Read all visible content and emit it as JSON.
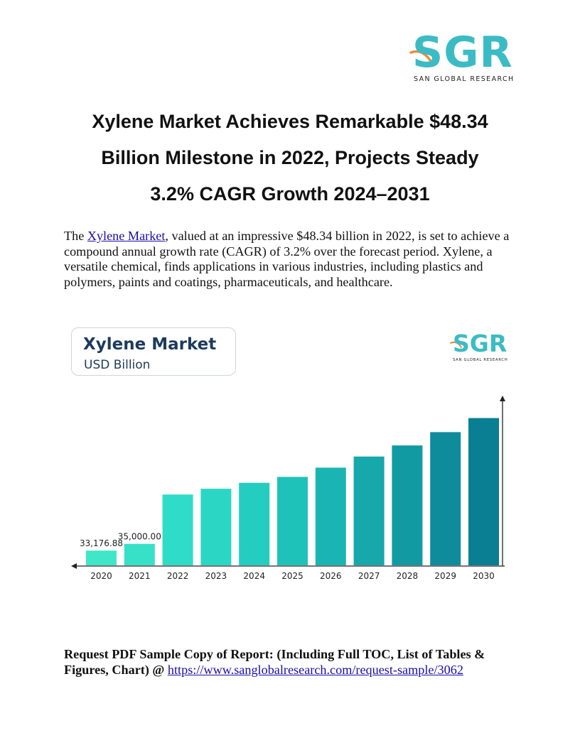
{
  "header_logo": {
    "letters": "SGR",
    "subtitle": "SAN GLOBAL RESEARCH"
  },
  "title": {
    "line1": "Xylene Market Achieves Remarkable $48.34",
    "line2": "Billion Milestone in 2022, Projects Steady",
    "line3": "3.2% CAGR Growth 2024–2031"
  },
  "intro": {
    "prefix": "The ",
    "link_text": "Xylene Market",
    "suffix": ", valued at an impressive $48.34 billion in 2022, is set to achieve a compound annual growth rate (CAGR) of 3.2% over the forecast period. Xylene, a versatile chemical, finds applications in various industries, including plastics and polymers, paints and coatings, pharmaceuticals, and healthcare."
  },
  "chart_header": {
    "title": "Xylene Market",
    "subtitle": "USD Billion",
    "logo_letters": "SGR",
    "logo_subtitle": "SAN GLOBAL RESEARCH"
  },
  "chart_data": {
    "type": "bar",
    "categories": [
      "2020",
      "2021",
      "2022",
      "2023",
      "2024",
      "2025",
      "2026",
      "2027",
      "2028",
      "2029",
      "2030"
    ],
    "values": [
      33176.88,
      35000.0,
      48340,
      49900,
      51500,
      53100,
      55600,
      58600,
      61600,
      65200,
      69000
    ],
    "data_labels": [
      "33,176.88",
      "35,000.00",
      "",
      "",
      "",
      "",
      "",
      "",
      "",
      "",
      ""
    ],
    "ylim": [
      29000,
      72000
    ],
    "colors": [
      "#3fe6c7",
      "#37e1c8",
      "#2fdcc8",
      "#2bd6c5",
      "#24cdc0",
      "#1fc2b8",
      "#1ab5b2",
      "#16a8ab",
      "#129aa3",
      "#0e8c9c",
      "#0a7e92"
    ],
    "grid": false
  },
  "request": {
    "bold_text": "Request PDF Sample Copy of Report: (Including Full TOC, List of Tables & Figures, Chart) @ ",
    "link_text": "https://www.sanglobalresearch.com/request-sample/3062"
  }
}
